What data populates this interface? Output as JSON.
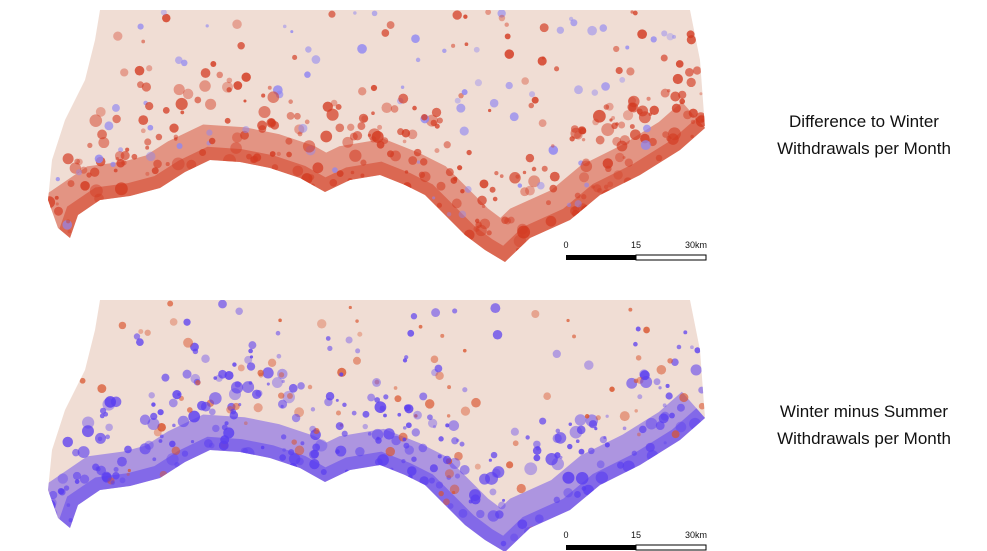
{
  "panels": [
    {
      "label_lines": [
        "Difference to Winter",
        "Withdrawals per Month"
      ],
      "scale_bar": {
        "labels": [
          "0",
          "15",
          "30km"
        ]
      }
    },
    {
      "label_lines": [
        "Winter minus Summer",
        "Withdrawals per Month"
      ],
      "scale_bar": {
        "labels": [
          "0",
          "15",
          "30km"
        ]
      }
    }
  ]
}
